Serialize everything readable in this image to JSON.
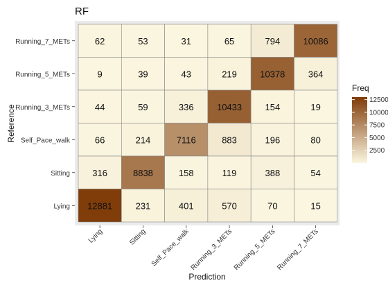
{
  "chart_data": {
    "type": "heatmap",
    "title": "RF",
    "xlabel": "Prediction",
    "ylabel": "Reference",
    "x_categories": [
      "Lying",
      "Sitting",
      "Self_Pace_walk",
      "Running_3_METs",
      "Running_5_METs",
      "Running_7_METs"
    ],
    "y_categories": [
      "Running_7_METs",
      "Running_5_METs",
      "Running_3_METs",
      "Self_Pace_walk",
      "Sitting",
      "Lying"
    ],
    "values": [
      [
        62,
        53,
        31,
        65,
        794,
        10086
      ],
      [
        9,
        39,
        43,
        219,
        10378,
        364
      ],
      [
        44,
        59,
        336,
        10433,
        154,
        19
      ],
      [
        66,
        214,
        7116,
        883,
        196,
        80
      ],
      [
        316,
        8838,
        158,
        119,
        388,
        54
      ],
      [
        12881,
        231,
        401,
        570,
        70,
        15
      ]
    ],
    "legend": {
      "title": "Freq",
      "ticks": [
        12500,
        10000,
        7500,
        5000,
        2500
      ],
      "range": [
        0,
        13000
      ],
      "low_color": "#fbf6e0",
      "high_color": "#7f3b08"
    },
    "colors": {
      "panel_background": "#ebebeb",
      "cell_border": "#888888"
    }
  }
}
